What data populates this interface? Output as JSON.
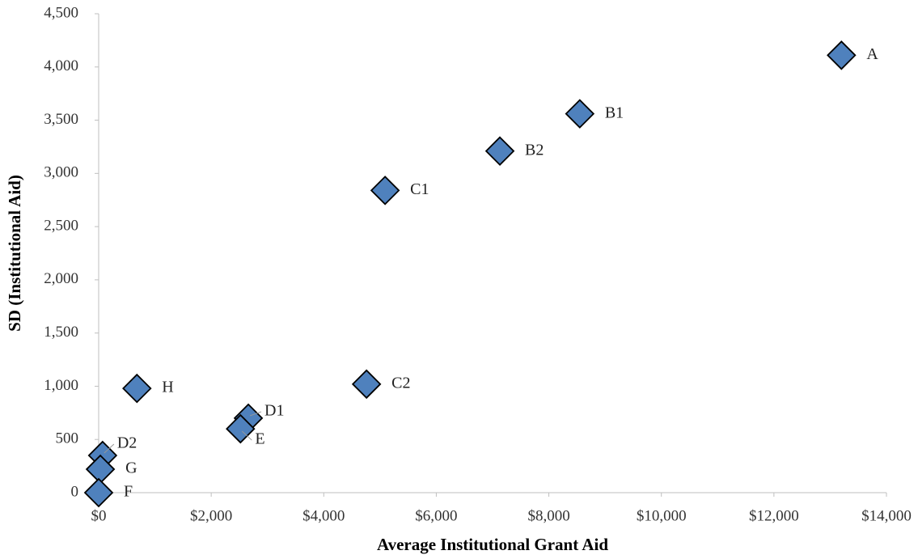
{
  "chart_data": {
    "type": "scatter",
    "x_label": "Average Institutional Grant Aid",
    "y_label": "SD (Institutional Aid)",
    "labels": [
      "A",
      "B1",
      "B2",
      "C1",
      "C2",
      "H",
      "D1",
      "E",
      "D2",
      "G",
      "F"
    ],
    "x": [
      13200,
      8550,
      7130,
      5090,
      4760,
      680,
      2660,
      2520,
      70,
      30,
      0
    ],
    "values": [
      4110,
      3560,
      3210,
      2840,
      1020,
      980,
      700,
      600,
      350,
      220,
      0
    ],
    "color": "#4f81bd",
    "xlim": [
      0,
      14000
    ],
    "xticks": [
      {
        "value": 0,
        "label": "$0"
      },
      {
        "value": 2000,
        "label": "$2,000"
      },
      {
        "value": 4000,
        "label": "$4,000"
      },
      {
        "value": 6000,
        "label": "$6,000"
      },
      {
        "value": 8000,
        "label": "$8,000"
      },
      {
        "value": 10000,
        "label": "$10,000"
      },
      {
        "value": 12000,
        "label": "$12,000"
      },
      {
        "value": 14000,
        "label": "$14,000"
      }
    ],
    "ylim": [
      0,
      4500
    ],
    "yticks": [
      0,
      500,
      {
        "value": 1000,
        "label": "1,000"
      },
      {
        "value": 1500,
        "label": "1,500"
      },
      {
        "value": 2000,
        "label": "2,000"
      },
      {
        "value": 2500,
        "label": "2,500"
      },
      {
        "value": 3000,
        "label": "3,000"
      },
      {
        "value": 3500,
        "label": "3,500"
      },
      {
        "value": 4000,
        "label": "4,000"
      },
      {
        "value": 4500,
        "label": "4,500"
      }
    ],
    "grid": false
  }
}
